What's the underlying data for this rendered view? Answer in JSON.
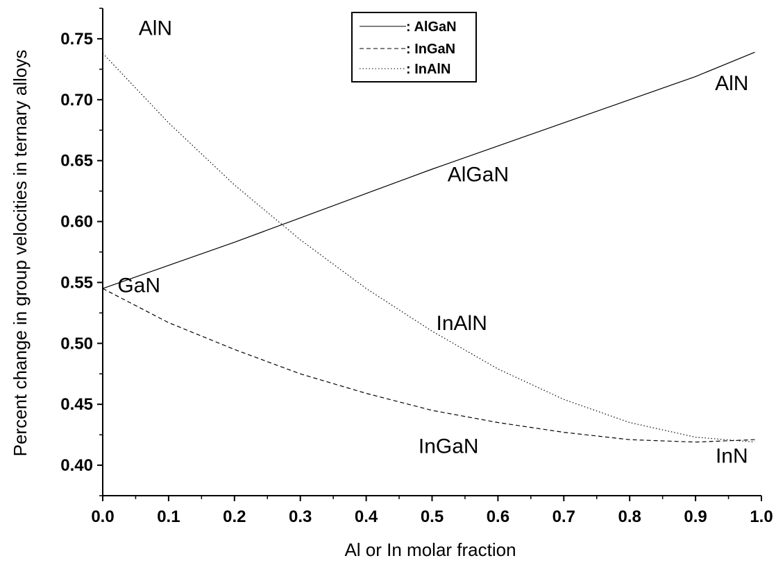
{
  "chart_data": {
    "type": "line",
    "xlabel": "Al or In molar fraction",
    "ylabel": "Percent change in group velocities in ternary alloys",
    "xlim": [
      0.0,
      1.0
    ],
    "ylim": [
      0.375,
      0.775
    ],
    "x_ticks": [
      0.0,
      0.1,
      0.2,
      0.3,
      0.4,
      0.5,
      0.6,
      0.7,
      0.8,
      0.9,
      1.0
    ],
    "x_tick_labels": [
      "0.0",
      "0.1",
      "0.2",
      "0.3",
      "0.4",
      "0.5",
      "0.6",
      "0.7",
      "0.8",
      "0.9",
      "1.0"
    ],
    "y_ticks": [
      0.4,
      0.45,
      0.5,
      0.55,
      0.6,
      0.65,
      0.7,
      0.75
    ],
    "y_tick_labels": [
      "0.40",
      "0.45",
      "0.50",
      "0.55",
      "0.60",
      "0.65",
      "0.70",
      "0.75"
    ],
    "grid": false,
    "legend_position": "top-center",
    "series": [
      {
        "name": ": AlGaN",
        "style": "solid",
        "x": [
          0.0,
          0.1,
          0.2,
          0.3,
          0.4,
          0.5,
          0.6,
          0.7,
          0.8,
          0.9,
          0.99
        ],
        "y": [
          0.545,
          0.564,
          0.583,
          0.603,
          0.623,
          0.643,
          0.662,
          0.681,
          0.7,
          0.719,
          0.739
        ]
      },
      {
        "name": ": InGaN",
        "style": "dashed",
        "x": [
          0.0,
          0.1,
          0.2,
          0.3,
          0.4,
          0.5,
          0.6,
          0.7,
          0.8,
          0.9,
          0.99
        ],
        "y": [
          0.545,
          0.517,
          0.495,
          0.475,
          0.459,
          0.445,
          0.435,
          0.427,
          0.421,
          0.419,
          0.421
        ]
      },
      {
        "name": ": InAlN",
        "style": "dotted",
        "x": [
          0.0,
          0.1,
          0.2,
          0.3,
          0.4,
          0.5,
          0.6,
          0.7,
          0.8,
          0.9,
          0.99
        ],
        "y": [
          0.738,
          0.681,
          0.63,
          0.585,
          0.545,
          0.51,
          0.479,
          0.454,
          0.435,
          0.423,
          0.419
        ]
      }
    ],
    "annotations": [
      {
        "text": "AlN",
        "x": 0.08,
        "y": 0.753
      },
      {
        "text": "AlN",
        "x": 0.955,
        "y": 0.708
      },
      {
        "text": "AlGaN",
        "x": 0.57,
        "y": 0.633
      },
      {
        "text": "GaN",
        "x": 0.055,
        "y": 0.542
      },
      {
        "text": "InAlN",
        "x": 0.545,
        "y": 0.511
      },
      {
        "text": "InGaN",
        "x": 0.525,
        "y": 0.41
      },
      {
        "text": "InN",
        "x": 0.955,
        "y": 0.402
      }
    ]
  }
}
